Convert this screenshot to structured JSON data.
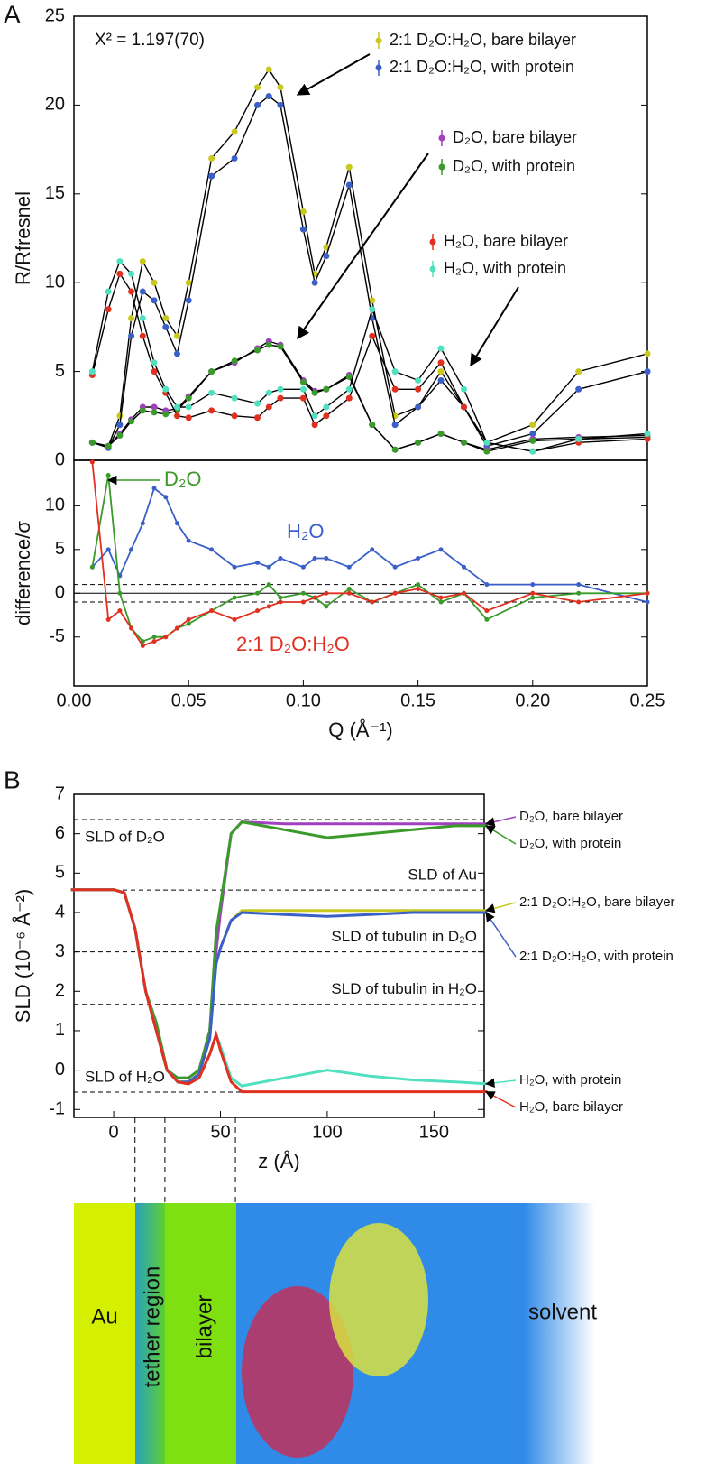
{
  "panel_labels": [
    "A",
    "B"
  ],
  "chart_data": [
    {
      "type": "scatter",
      "ylabel": "R/Rfresnel",
      "annotation": "X² = 1.197(70)",
      "xlim": [
        0,
        0.25
      ],
      "ylim": [
        0,
        25
      ],
      "yticks": [
        0,
        5,
        10,
        15,
        20,
        25
      ],
      "x": [
        0.008,
        0.015,
        0.02,
        0.025,
        0.03,
        0.035,
        0.04,
        0.045,
        0.05,
        0.06,
        0.07,
        0.08,
        0.085,
        0.09,
        0.1,
        0.105,
        0.11,
        0.12,
        0.13,
        0.14,
        0.15,
        0.16,
        0.17,
        0.18,
        0.2,
        0.22,
        0.25
      ],
      "series": [
        {
          "name": "2:1 D₂O:H₂O, bare bilayer",
          "color": "#c8c81e",
          "values": [
            1,
            0.8,
            2.5,
            8,
            11.2,
            10,
            8,
            7,
            10,
            17,
            18.5,
            21,
            22,
            21,
            14,
            10.5,
            12,
            16.5,
            9,
            2.5,
            3,
            5,
            3,
            1,
            2,
            5,
            6
          ]
        },
        {
          "name": "2:1 D₂O:H₂O, with protein",
          "color": "#3a5fc8",
          "values": [
            1,
            0.7,
            2,
            7,
            9.5,
            9,
            7.5,
            6,
            9,
            16,
            17,
            20,
            20.5,
            20,
            13,
            10,
            11.5,
            15.5,
            8,
            2,
            3,
            4.5,
            3,
            0.8,
            1.5,
            4,
            5
          ]
        },
        {
          "name": "D₂O, bare bilayer",
          "color": "#a040c0",
          "values": [
            1,
            0.8,
            1.5,
            2.3,
            3,
            3,
            2.8,
            2.9,
            3.6,
            5,
            5.5,
            6.3,
            6.7,
            6.5,
            4.5,
            3.9,
            4,
            4.8,
            2,
            0.6,
            1,
            1.5,
            1,
            0.6,
            1.2,
            1.3,
            1.4
          ]
        },
        {
          "name": "D₂O, with protein",
          "color": "#3a9a2a",
          "values": [
            1,
            0.8,
            1.4,
            2.2,
            2.8,
            2.7,
            2.6,
            2.8,
            3.5,
            5,
            5.6,
            6.2,
            6.5,
            6.4,
            4.4,
            3.8,
            4,
            4.7,
            2,
            0.6,
            1,
            1.5,
            1,
            0.5,
            1.1,
            1.2,
            1.3
          ]
        },
        {
          "name": "H₂O, bare bilayer",
          "color": "#e03020",
          "values": [
            4.8,
            8.5,
            10.5,
            9.5,
            7,
            5,
            3.8,
            2.5,
            2.4,
            2.8,
            2.5,
            2.4,
            3,
            3.5,
            3.5,
            2,
            2.5,
            3.5,
            7,
            4,
            4,
            5.5,
            3,
            1,
            0.5,
            1,
            1.2
          ]
        },
        {
          "name": "H₂O, with protein",
          "color": "#50e0c0",
          "values": [
            5,
            9.5,
            11.2,
            10.5,
            8,
            5.5,
            4,
            3,
            3,
            3.8,
            3.5,
            3.2,
            3.8,
            4,
            4,
            2.5,
            3,
            4,
            8.5,
            5,
            4.5,
            6.3,
            4,
            1,
            0.5,
            1.2,
            1.5
          ]
        }
      ]
    },
    {
      "type": "line",
      "ylabel": "difference/σ",
      "xlabel": "Q (Å⁻¹)",
      "xlim": [
        0,
        0.25
      ],
      "ylim": [
        -10.6,
        15.2
      ],
      "yticks": [
        -5,
        0,
        5,
        10
      ],
      "xticks": [
        {
          "value": 0,
          "label": "0.00"
        },
        0.05,
        {
          "value": 0.1,
          "label": "0.10"
        },
        0.15,
        {
          "value": 0.2,
          "label": "0.20"
        },
        0.25
      ],
      "hlines": [
        -1,
        1
      ],
      "x": [
        0.008,
        0.015,
        0.02,
        0.025,
        0.03,
        0.035,
        0.04,
        0.045,
        0.05,
        0.06,
        0.07,
        0.08,
        0.085,
        0.09,
        0.1,
        0.105,
        0.11,
        0.12,
        0.13,
        0.14,
        0.15,
        0.16,
        0.17,
        0.18,
        0.2,
        0.22,
        0.25
      ],
      "series": [
        {
          "name": "H₂O",
          "color": "#3a5fc8",
          "values": [
            3,
            5,
            2,
            5,
            8,
            12,
            11,
            8,
            6,
            5,
            3,
            3.5,
            3,
            4,
            3,
            4,
            4,
            3,
            5,
            3,
            4,
            5,
            3,
            1,
            1,
            1,
            -1
          ]
        },
        {
          "name": "D₂O",
          "color": "#3a9a2a",
          "values": [
            3,
            13.5,
            0,
            -4,
            -5.5,
            -5,
            -5,
            -4,
            -3.5,
            -2,
            -0.5,
            0,
            1,
            -0.5,
            0,
            -0.5,
            -1.5,
            0.5,
            -1,
            0,
            1,
            -1,
            0,
            -3,
            -0.5,
            0,
            0
          ]
        },
        {
          "name": "2:1 D₂O:H₂O",
          "color": "#e03020",
          "values": [
            15,
            -3,
            -2,
            -4,
            -6,
            -5.5,
            -5,
            -4,
            -3,
            -2,
            -3,
            -2,
            -1.5,
            -1,
            -1,
            -0.5,
            0,
            0,
            -1,
            0,
            0.5,
            -0.5,
            0,
            -2,
            0,
            -1,
            0
          ]
        }
      ]
    },
    {
      "type": "line",
      "ylabel": "SLD (10⁻⁶ Å⁻²)",
      "xlabel": "z (Å)",
      "xlim": [
        -18.6,
        173.5
      ],
      "ylim": [
        -1.2,
        7
      ],
      "xticks": [
        0,
        50,
        100,
        150
      ],
      "yticks": [
        -1,
        0,
        1,
        2,
        3,
        4,
        5,
        6,
        7
      ],
      "reference_lines": [
        {
          "value": 6.36,
          "label": "SLD of D₂O"
        },
        {
          "value": 4.57,
          "label": "SLD of Au"
        },
        {
          "value": 3.0,
          "label": "SLD of tubulin in D₂O"
        },
        {
          "value": 1.67,
          "label": "SLD of tubulin in H₂O"
        },
        {
          "value": -0.56,
          "label": "SLD of H₂O"
        }
      ],
      "vlines": [
        10,
        24,
        57
      ],
      "x": [
        -20,
        0,
        5,
        10,
        15,
        20,
        25,
        30,
        35,
        40,
        45,
        48,
        50,
        55,
        60,
        80,
        100,
        120,
        140,
        160,
        175
      ],
      "series": [
        {
          "name": "D₂O, bare bilayer",
          "color": "#a040c0",
          "values": [
            4.58,
            4.58,
            4.5,
            3.6,
            2,
            1,
            0,
            -0.2,
            -0.2,
            0,
            1,
            3,
            4,
            6,
            6.3,
            6.25,
            6.25,
            6.25,
            6.25,
            6.25,
            6.25
          ]
        },
        {
          "name": "D₂O, with protein",
          "color": "#3a9a2a",
          "values": [
            4.58,
            4.58,
            4.5,
            3.6,
            2,
            1.2,
            0,
            -0.2,
            -0.2,
            0,
            1,
            3.5,
            4.2,
            6,
            6.3,
            6.1,
            5.9,
            6,
            6.1,
            6.2,
            6.2
          ]
        },
        {
          "name": "2:1 D₂O:H₂O, bare bilayer",
          "color": "#c8c81e",
          "values": [
            4.58,
            4.58,
            4.5,
            3.6,
            2,
            1,
            0,
            -0.3,
            -0.3,
            -0.1,
            0.8,
            2.7,
            3.1,
            3.8,
            4.05,
            4.05,
            4.05,
            4.05,
            4.05,
            4.05,
            4.05
          ]
        },
        {
          "name": "2:1 D₂O:H₂O, with protein",
          "color": "#3a5fc8",
          "values": [
            4.58,
            4.58,
            4.5,
            3.6,
            2,
            1,
            0,
            -0.3,
            -0.3,
            -0.1,
            0.8,
            2.7,
            3.1,
            3.8,
            4.0,
            3.95,
            3.9,
            3.95,
            4.0,
            4.0,
            4.0
          ]
        },
        {
          "name": "H₂O, with protein",
          "color": "#50e0c0",
          "values": [
            4.58,
            4.58,
            4.5,
            3.6,
            2,
            1,
            0,
            -0.3,
            -0.35,
            -0.2,
            0.4,
            0.9,
            0.6,
            -0.2,
            -0.4,
            -0.2,
            0,
            -0.15,
            -0.25,
            -0.3,
            -0.35
          ]
        },
        {
          "name": "H₂O, bare bilayer",
          "color": "#e03020",
          "values": [
            4.58,
            4.58,
            4.5,
            3.6,
            2,
            1,
            0,
            -0.3,
            -0.35,
            -0.2,
            0.4,
            0.9,
            0.5,
            -0.3,
            -0.55,
            -0.55,
            -0.55,
            -0.55,
            -0.55,
            -0.55,
            -0.55
          ]
        }
      ]
    }
  ],
  "schematic": {
    "labels": [
      "Au",
      "tether region",
      "bilayer",
      "solvent"
    ]
  }
}
